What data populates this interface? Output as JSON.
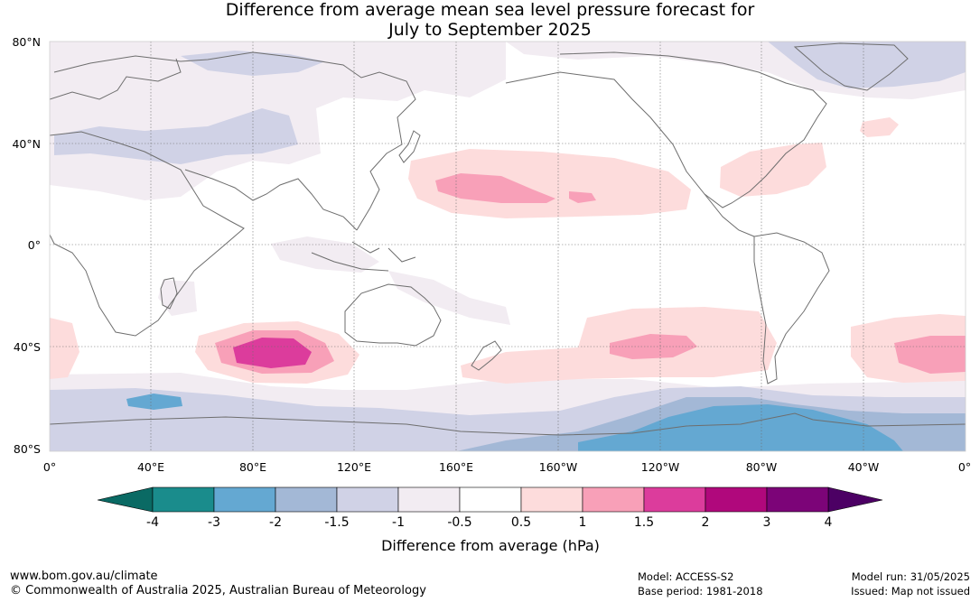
{
  "title": {
    "line1": "Difference from average mean sea level pressure forecast for",
    "line2": "July to September 2025"
  },
  "map": {
    "lat_labels": [
      "80°N",
      "40°N",
      "0°",
      "40°S",
      "80°S"
    ],
    "lon_labels": [
      "0°",
      "40°E",
      "80°E",
      "120°E",
      "160°E",
      "160°W",
      "120°W",
      "80°W",
      "40°W",
      "0°"
    ]
  },
  "colorbar": {
    "label": "Difference from average (hPa)",
    "ticks": [
      "-4",
      "-3",
      "-2",
      "-1.5",
      "-1",
      "-0.5",
      "0.5",
      "1",
      "1.5",
      "2",
      "3",
      "4"
    ],
    "colors": [
      "#1a8c8c",
      "#64a8d2",
      "#a3b8d6",
      "#d0d2e6",
      "#f2ecf2",
      "#ffffff",
      "#fddcdc",
      "#f8a0b8",
      "#dc3c9c",
      "#b0087c",
      "#7c0478"
    ],
    "under_color": "#0a6a64",
    "over_color": "#4c0064"
  },
  "footer": {
    "url": "www.bom.gov.au/climate",
    "copyright": "© Commonwealth of Australia 2025, Australian Bureau of Meteorology",
    "model": "Model: ACCESS-S2",
    "base_period": "Base period: 1981-2018",
    "model_run": "Model run: 31/05/2025",
    "issued": "Issued: Map not issued"
  }
}
